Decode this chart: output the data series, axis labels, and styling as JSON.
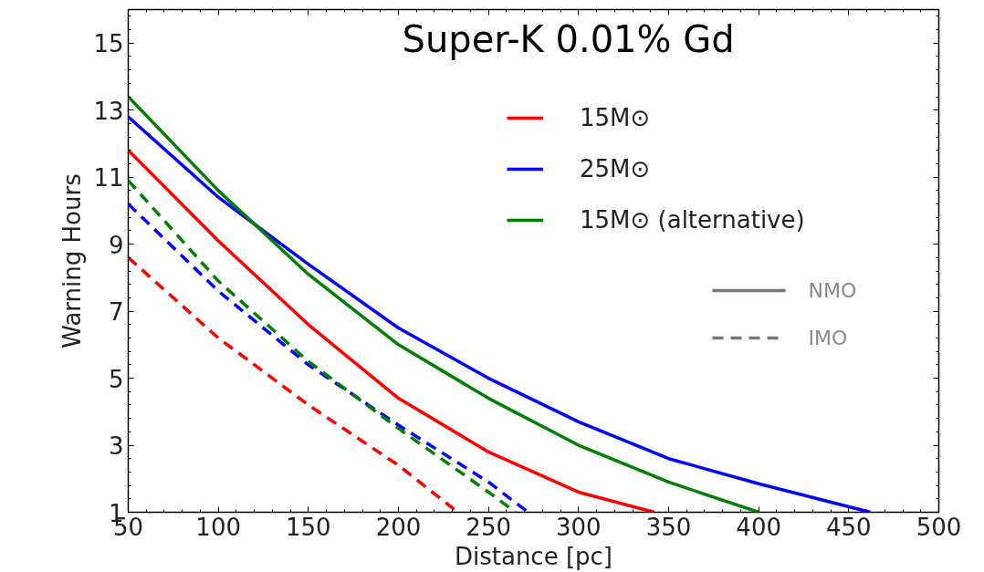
{
  "chart_data": {
    "type": "line",
    "title": "Super-K 0.01% Gd",
    "xlabel": "Distance [pc]",
    "ylabel": "Warning Hours",
    "xlim": [
      50,
      500
    ],
    "xticks": [
      50,
      100,
      150,
      200,
      250,
      300,
      350,
      400,
      450,
      500
    ],
    "ylim": [
      1,
      16
    ],
    "yticks": [
      1,
      3,
      5,
      7,
      9,
      11,
      13,
      15
    ],
    "grid": false,
    "legend": "top right",
    "marker": "none",
    "annotations": [
      "NMO",
      "IMO"
    ],
    "series": [
      {
        "name": "15M⊙",
        "color": "#ff0000",
        "line_style": "solid",
        "x": [
          50,
          100,
          150,
          200,
          250,
          300,
          342
        ],
        "values": [
          11.8,
          9.1,
          6.6,
          4.4,
          2.8,
          1.6,
          1.0
        ]
      },
      {
        "name": "25M⊙",
        "color": "#0000ff",
        "line_style": "solid",
        "x": [
          50,
          100,
          150,
          200,
          250,
          300,
          350,
          400,
          462
        ],
        "values": [
          12.8,
          10.4,
          8.4,
          6.5,
          5.0,
          3.7,
          2.6,
          1.85,
          1.0
        ]
      },
      {
        "name": "15M⊙ (alternative)",
        "color": "#008000",
        "line_style": "solid",
        "x": [
          50,
          100,
          120,
          150,
          200,
          250,
          300,
          350,
          400
        ],
        "values": [
          13.4,
          10.6,
          9.6,
          8.1,
          6.0,
          4.4,
          3.0,
          1.9,
          1.0
        ]
      },
      {
        "color": "#ff0000",
        "line_style": "dashed",
        "x": [
          50,
          100,
          150,
          200,
          233
        ],
        "values": [
          8.6,
          6.2,
          4.2,
          2.4,
          1.0
        ]
      },
      {
        "color": "#0000ff",
        "line_style": "dashed",
        "x": [
          50,
          100,
          150,
          200,
          250,
          272
        ],
        "values": [
          10.2,
          7.6,
          5.4,
          3.6,
          1.9,
          1.0
        ]
      },
      {
        "color": "#008000",
        "line_style": "dashed",
        "x": [
          50,
          100,
          150,
          200,
          250,
          265
        ],
        "values": [
          10.9,
          7.9,
          5.5,
          3.5,
          1.6,
          1.0
        ]
      }
    ]
  }
}
